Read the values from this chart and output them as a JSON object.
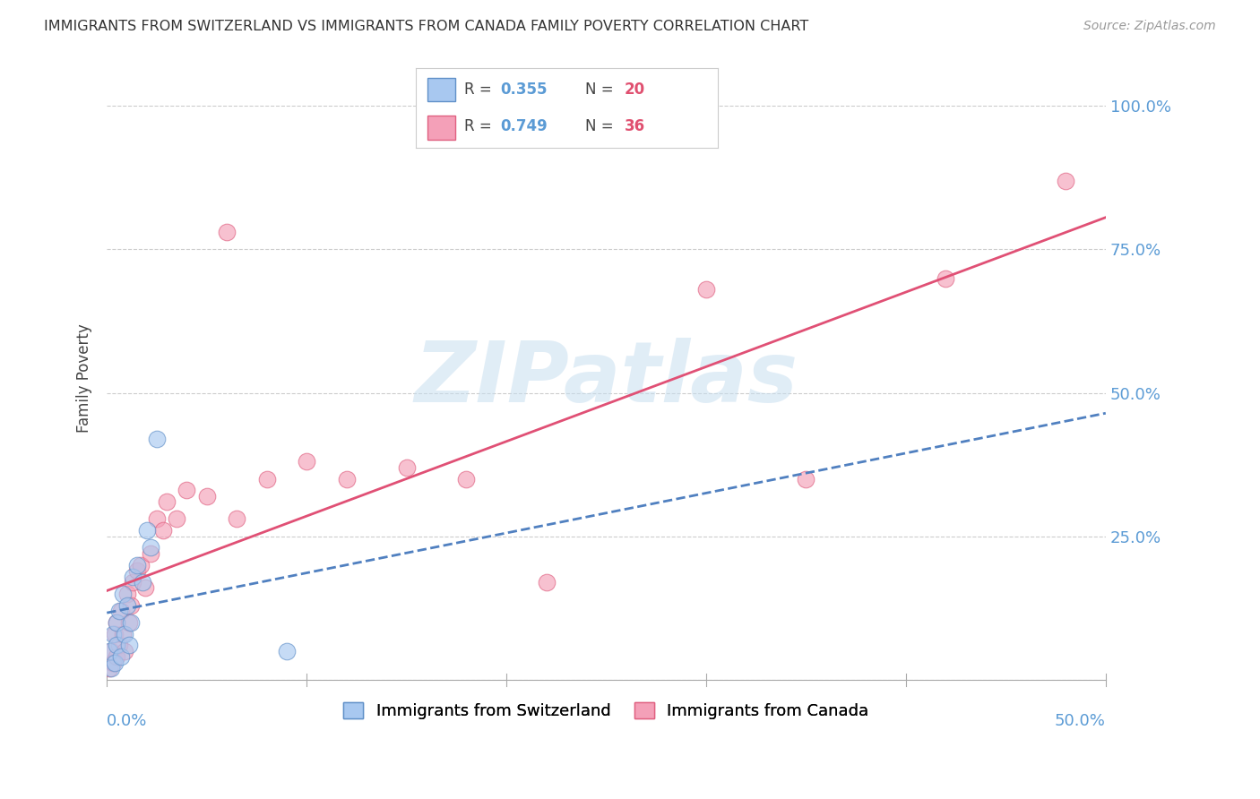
{
  "title": "IMMIGRANTS FROM SWITZERLAND VS IMMIGRANTS FROM CANADA FAMILY POVERTY CORRELATION CHART",
  "source": "Source: ZipAtlas.com",
  "ylabel": "Family Poverty",
  "color_swiss": "#a8c8f0",
  "color_canada": "#f4a0b8",
  "color_swiss_edge": "#6090c8",
  "color_canada_edge": "#e06080",
  "color_swiss_line": "#5080c0",
  "color_canada_line": "#e05075",
  "color_swiss_dashed": "#90b8e0",
  "color_axis_label": "#5b9bd5",
  "swiss_x": [
    0.001,
    0.002,
    0.003,
    0.004,
    0.005,
    0.005,
    0.006,
    0.007,
    0.008,
    0.009,
    0.01,
    0.011,
    0.012,
    0.013,
    0.015,
    0.018,
    0.02,
    0.022,
    0.025,
    0.09
  ],
  "swiss_y": [
    0.05,
    0.02,
    0.08,
    0.03,
    0.06,
    0.1,
    0.12,
    0.04,
    0.15,
    0.08,
    0.13,
    0.06,
    0.1,
    0.18,
    0.2,
    0.17,
    0.26,
    0.23,
    0.42,
    0.05
  ],
  "canada_x": [
    0.001,
    0.002,
    0.003,
    0.004,
    0.005,
    0.005,
    0.006,
    0.007,
    0.008,
    0.009,
    0.01,
    0.011,
    0.012,
    0.013,
    0.015,
    0.017,
    0.019,
    0.022,
    0.025,
    0.028,
    0.03,
    0.035,
    0.04,
    0.05,
    0.06,
    0.065,
    0.08,
    0.1,
    0.12,
    0.15,
    0.18,
    0.22,
    0.3,
    0.35,
    0.42,
    0.48
  ],
  "canada_y": [
    0.02,
    0.05,
    0.03,
    0.08,
    0.04,
    0.1,
    0.06,
    0.12,
    0.08,
    0.05,
    0.15,
    0.1,
    0.13,
    0.17,
    0.19,
    0.2,
    0.16,
    0.22,
    0.28,
    0.26,
    0.31,
    0.28,
    0.33,
    0.32,
    0.78,
    0.28,
    0.35,
    0.38,
    0.35,
    0.37,
    0.35,
    0.17,
    0.68,
    0.35,
    0.7,
    0.87
  ],
  "xlim": [
    0.0,
    0.5
  ],
  "ylim": [
    0.0,
    1.05
  ],
  "ytick_vals": [
    0.0,
    0.25,
    0.5,
    0.75,
    1.0
  ],
  "ytick_labels": [
    "",
    "25.0%",
    "50.0%",
    "75.0%",
    "100.0%"
  ],
  "xtick_positions": [
    0.0,
    0.1,
    0.2,
    0.3,
    0.4,
    0.5
  ],
  "legend_r_swiss": "0.355",
  "legend_n_swiss": "20",
  "legend_r_canada": "0.749",
  "legend_n_canada": "36",
  "watermark_text": "ZIPatlas",
  "watermark_color": "#c8dff0",
  "bottom_legend_labels": [
    "Immigrants from Switzerland",
    "Immigrants from Canada"
  ]
}
